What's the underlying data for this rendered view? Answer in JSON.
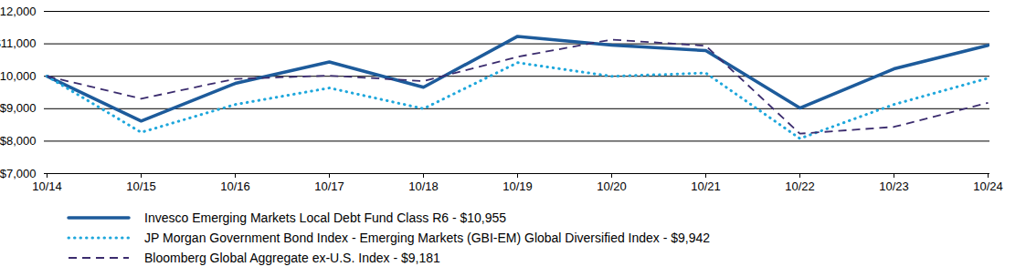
{
  "chart_data": {
    "type": "line",
    "x": [
      "10/14",
      "10/15",
      "10/16",
      "10/17",
      "10/18",
      "10/19",
      "10/20",
      "10/21",
      "10/22",
      "10/23",
      "10/24"
    ],
    "series": [
      {
        "name": "Invesco Emerging Markets Local Debt Fund Class R6 - $10,955",
        "color": "#1d5b9b",
        "line_style": "solid",
        "values": [
          10000,
          8620,
          9780,
          10440,
          9660,
          11230,
          10960,
          10790,
          9020,
          10230,
          10955
        ]
      },
      {
        "name": "JP Morgan Government Bond Index - Emerging Markets (GBI-EM) Global Diversified Index - $9,942",
        "color": "#1ea7dc",
        "line_style": "dotted",
        "values": [
          10000,
          8270,
          9130,
          9640,
          9000,
          10420,
          10000,
          10100,
          8080,
          9130,
          9942
        ]
      },
      {
        "name": "Bloomberg Global Aggregate ex-U.S. Index - $9,181",
        "color": "#3b2c6e",
        "line_style": "dashed",
        "values": [
          10000,
          9310,
          9920,
          10020,
          9850,
          10600,
          11130,
          10940,
          8230,
          8440,
          9181
        ]
      }
    ],
    "ylim": [
      7000,
      12000
    ],
    "yticks": [
      {
        "value": 7000,
        "label": "$7,000"
      },
      {
        "value": 8000,
        "label": "$8,000"
      },
      {
        "value": 9000,
        "label": "$9,000"
      },
      {
        "value": 10000,
        "label": "$10,000"
      },
      {
        "value": 11000,
        "label": "$11,000"
      },
      {
        "value": 12000,
        "label": "$12,000"
      }
    ],
    "grid": true,
    "legend": "bottom"
  }
}
